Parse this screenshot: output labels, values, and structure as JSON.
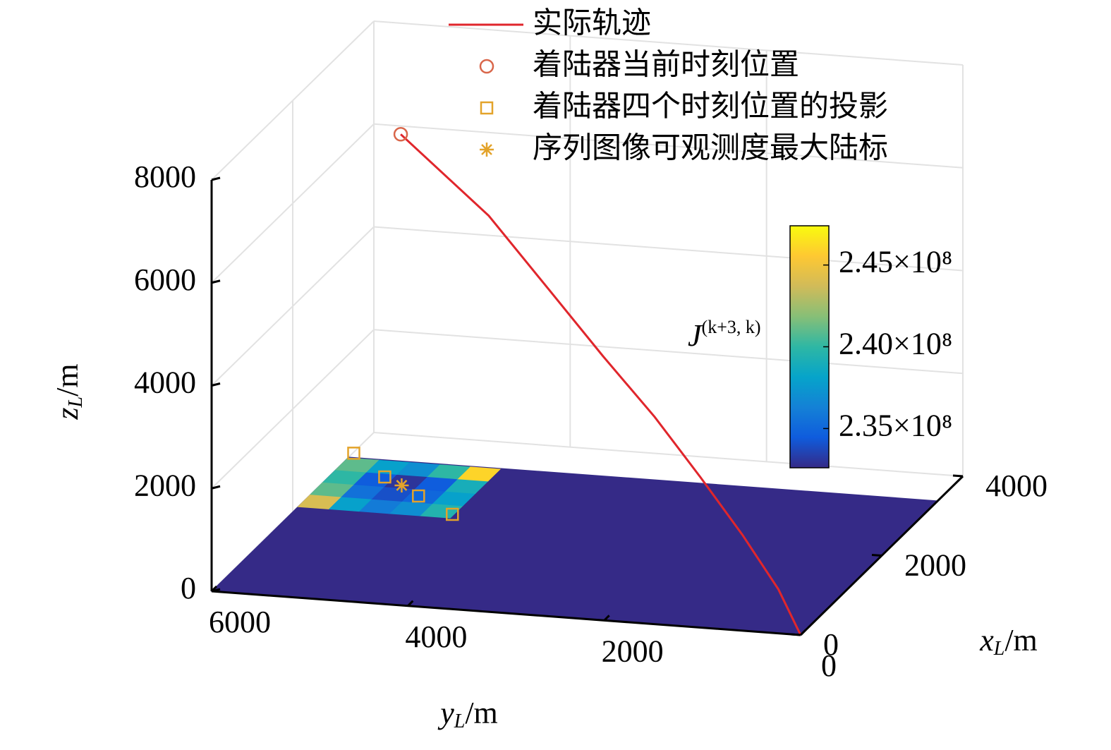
{
  "chart_data": {
    "type": "trajectory3d",
    "legend_loc": "upper right",
    "grid": true,
    "xlabel": {
      "var": "x",
      "sub": "L",
      "unit": "/m"
    },
    "ylabel": {
      "var": "y",
      "sub": "L",
      "unit": "/m"
    },
    "zlabel": {
      "var": "z",
      "sub": "L",
      "unit": "/m"
    },
    "xlim": [
      0,
      4000
    ],
    "ylim": [
      0,
      6000
    ],
    "zlim": [
      0,
      8000
    ],
    "xticks": [
      0,
      2000,
      4000
    ],
    "yticks": [
      0,
      2000,
      4000,
      6000
    ],
    "zticks": [
      0,
      2000,
      4000,
      6000,
      8000
    ],
    "series": [
      {
        "name": "实际轨迹",
        "type": "line",
        "color": "#e0262c",
        "x": [
          0,
          250,
          500,
          750,
          1000,
          1250,
          1500,
          1750,
          2000
        ],
        "y": [
          0,
          330,
          800,
          1330,
          1900,
          2530,
          3180,
          3900,
          4900
        ],
        "z": [
          0,
          650,
          1450,
          2300,
          3200,
          4100,
          5100,
          6250,
          7500
        ]
      },
      {
        "name": "着陆器当前时刻位置",
        "type": "circle",
        "color": "#d9664a",
        "x": [
          2000
        ],
        "y": [
          4900
        ],
        "z": [
          7500
        ]
      },
      {
        "name": "着陆器四个时刻位置的投影",
        "type": "square",
        "color": "#e3a32a",
        "x": [
          3480,
          2978,
          2591,
          2220
        ],
        "y": [
          5990,
          5467,
          4963,
          4465
        ],
        "z": [
          0,
          0,
          0,
          0
        ]
      },
      {
        "name": "序列图像可观测度最大陆标",
        "type": "star",
        "color": "#e3a32a",
        "x": [
          2810
        ],
        "y": [
          5225
        ],
        "z": [
          0
        ]
      }
    ],
    "floor": {
      "x": [
        0,
        3380
      ],
      "y": [
        0,
        6000
      ],
      "value": 232600000
    },
    "patch": {
      "x": [
        2130,
        2440,
        2750,
        3060,
        3360
      ],
      "y": [
        4450,
        4760,
        5070,
        5380,
        5690,
        6000
      ],
      "values": [
        [
          239500000,
          237000000,
          236000000,
          238000000,
          244000000
        ],
        [
          238000000,
          235000000,
          234000000,
          235500000,
          241000000
        ],
        [
          239000000,
          234500000,
          233000000,
          234500000,
          240000000
        ],
        [
          246000000,
          240000000,
          237000000,
          238000000,
          241000000
        ]
      ]
    },
    "colorbar": {
      "label": {
        "var": "J",
        "sup": "(k+3, k)"
      },
      "clim": [
        232600000,
        247400000
      ],
      "ticks": [
        {
          "value": 235000000,
          "label": "2.35×10⁸"
        },
        {
          "value": 240000000,
          "label": "2.40×10⁸"
        },
        {
          "value": 245000000,
          "label": "2.45×10⁸"
        }
      ],
      "colormap": [
        "#352a87",
        "#0f5cdd",
        "#1481d6",
        "#06a4ca",
        "#2eb7a4",
        "#87bf77",
        "#d1bb59",
        "#fec832",
        "#f9fb0e"
      ]
    }
  }
}
